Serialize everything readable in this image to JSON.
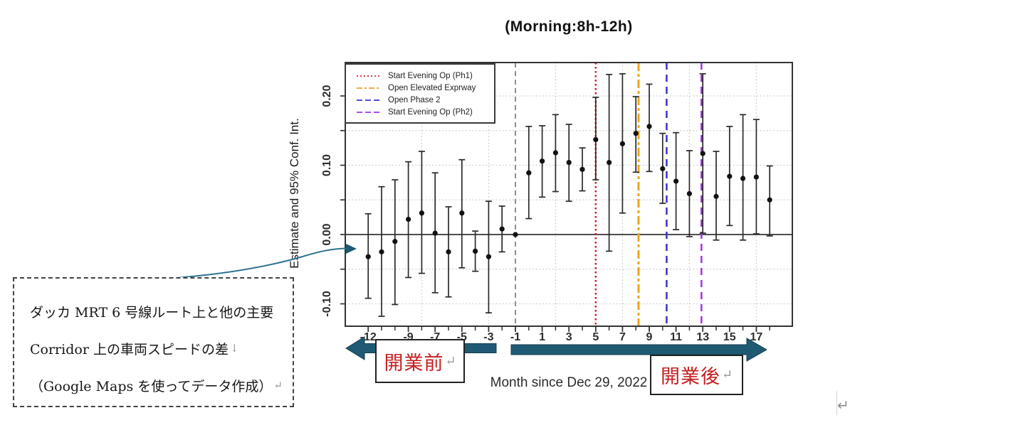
{
  "title": "(Morning:8h-12h)",
  "chart_data": {
    "type": "scatter",
    "title": "(Morning:8h-12h)",
    "xlabel": "Month since Dec 29, 2022",
    "ylabel": "Estimate and 95% Conf. Int.",
    "x_axis": {
      "tick_label_months": [
        -12,
        -9,
        -7,
        -5,
        -3,
        -1,
        1,
        3,
        5,
        7,
        9,
        11,
        13,
        15,
        17
      ],
      "minor_tick_start": -12,
      "minor_tick_end": 18
    },
    "y_axis": {
      "tick_min": -0.1,
      "tick_max": 0.2,
      "tick_step": 0.05,
      "label_values": [
        -0.1,
        0.0,
        0.1,
        0.2
      ],
      "label_texts": [
        "-0.10",
        "0.00",
        "0.10",
        "0.20"
      ]
    },
    "grid": {
      "x_months": [
        -8,
        -3,
        2,
        7,
        12,
        17
      ],
      "y_values": [
        -0.1,
        -0.05,
        0.05,
        0.1,
        0.15,
        0.2
      ],
      "style": "dotted"
    },
    "zero_line_value": 0.0,
    "reference_line": {
      "month": -1,
      "color": "#8f8f8f",
      "dash": "7,5",
      "width": 2
    },
    "event_lines": [
      {
        "label": "Start Evening Op (Ph1)",
        "month": 5,
        "color": "#cc2222",
        "dash": "2.5,3.5",
        "width": 2.5,
        "legend_dash": "2,3"
      },
      {
        "label": "Open Elevated Exprway",
        "month": 8.2,
        "color": "#e9a51f",
        "dash": "12,4,4,4",
        "width": 3,
        "legend_dash": "8,3,3,3"
      },
      {
        "label": "Open Phase 2",
        "month": 10.3,
        "color": "#3a30cf",
        "dash": "10,7",
        "width": 2.5,
        "legend_dash": "8,4"
      },
      {
        "label": "Start Evening Op (Ph2)",
        "month": 12.9,
        "color": "#a233ee",
        "dash": "10,7",
        "width": 2.5,
        "legend_dash": "8,4"
      }
    ],
    "points": [
      {
        "month": -12,
        "est": -0.032,
        "lo": -0.092,
        "hi": 0.03
      },
      {
        "month": -11,
        "est": -0.025,
        "lo": -0.118,
        "hi": 0.069
      },
      {
        "month": -10,
        "est": -0.01,
        "lo": -0.101,
        "hi": 0.079
      },
      {
        "month": -9,
        "est": 0.022,
        "lo": -0.062,
        "hi": 0.105
      },
      {
        "month": -8,
        "est": 0.031,
        "lo": -0.056,
        "hi": 0.12
      },
      {
        "month": -7,
        "est": 0.002,
        "lo": -0.084,
        "hi": 0.089
      },
      {
        "month": -6,
        "est": -0.025,
        "lo": -0.09,
        "hi": 0.04
      },
      {
        "month": -5,
        "est": 0.031,
        "lo": -0.048,
        "hi": 0.108
      },
      {
        "month": -4,
        "est": -0.024,
        "lo": -0.053,
        "hi": 0.005
      },
      {
        "month": -3,
        "est": -0.032,
        "lo": -0.113,
        "hi": 0.048
      },
      {
        "month": -2,
        "est": 0.008,
        "lo": -0.025,
        "hi": 0.041
      },
      {
        "month": -1,
        "est": 0.0,
        "lo": null,
        "hi": null
      },
      {
        "month": 0,
        "est": 0.089,
        "lo": 0.023,
        "hi": 0.156
      },
      {
        "month": 1,
        "est": 0.106,
        "lo": 0.054,
        "hi": 0.157
      },
      {
        "month": 2,
        "est": 0.118,
        "lo": 0.062,
        "hi": 0.173
      },
      {
        "month": 3,
        "est": 0.104,
        "lo": 0.048,
        "hi": 0.159
      },
      {
        "month": 4,
        "est": 0.094,
        "lo": 0.063,
        "hi": 0.125
      },
      {
        "month": 5,
        "est": 0.137,
        "lo": 0.079,
        "hi": 0.198
      },
      {
        "month": 6,
        "est": 0.104,
        "lo": -0.024,
        "hi": 0.231
      },
      {
        "month": 7,
        "est": 0.131,
        "lo": 0.031,
        "hi": 0.232
      },
      {
        "month": 8,
        "est": 0.146,
        "lo": 0.09,
        "hi": 0.199
      },
      {
        "month": 9,
        "est": 0.156,
        "lo": 0.091,
        "hi": 0.217
      },
      {
        "month": 10,
        "est": 0.095,
        "lo": 0.045,
        "hi": 0.146
      },
      {
        "month": 11,
        "est": 0.077,
        "lo": 0.007,
        "hi": 0.147
      },
      {
        "month": 12,
        "est": 0.059,
        "lo": -0.003,
        "hi": 0.121
      },
      {
        "month": 13,
        "est": 0.117,
        "lo": 0.002,
        "hi": 0.232
      },
      {
        "month": 14,
        "est": 0.055,
        "lo": -0.008,
        "hi": 0.12
      },
      {
        "month": 15,
        "est": 0.084,
        "lo": 0.013,
        "hi": 0.156
      },
      {
        "month": 16,
        "est": 0.081,
        "lo": -0.008,
        "hi": 0.173
      },
      {
        "month": 17,
        "est": 0.083,
        "lo": 0.001,
        "hi": 0.166
      },
      {
        "month": 18,
        "est": 0.05,
        "lo": -0.002,
        "hi": 0.099
      }
    ]
  },
  "annotations": {
    "pre_label": {
      "text": "開業前",
      "mark": "↵"
    },
    "post_label": {
      "text": "開業後",
      "mark": "↵"
    },
    "note_box": {
      "lines": [
        "ダッカ MRT 6 号線ルート上と他の主要",
        "Corridor 上の車両スピードの差",
        "（Google Maps を使ってデータ作成）"
      ],
      "line_end_marks": [
        "",
        "↓",
        "↵"
      ]
    },
    "trailing_mark": "↵"
  },
  "colors": {
    "arrow_fill": "#1f5a73",
    "connector": "#2d7391",
    "red_text": "#c42020",
    "point": "#111111",
    "grid": "#c6c6c6",
    "zero_line": "#4d4d4d",
    "axis": "#333333"
  }
}
